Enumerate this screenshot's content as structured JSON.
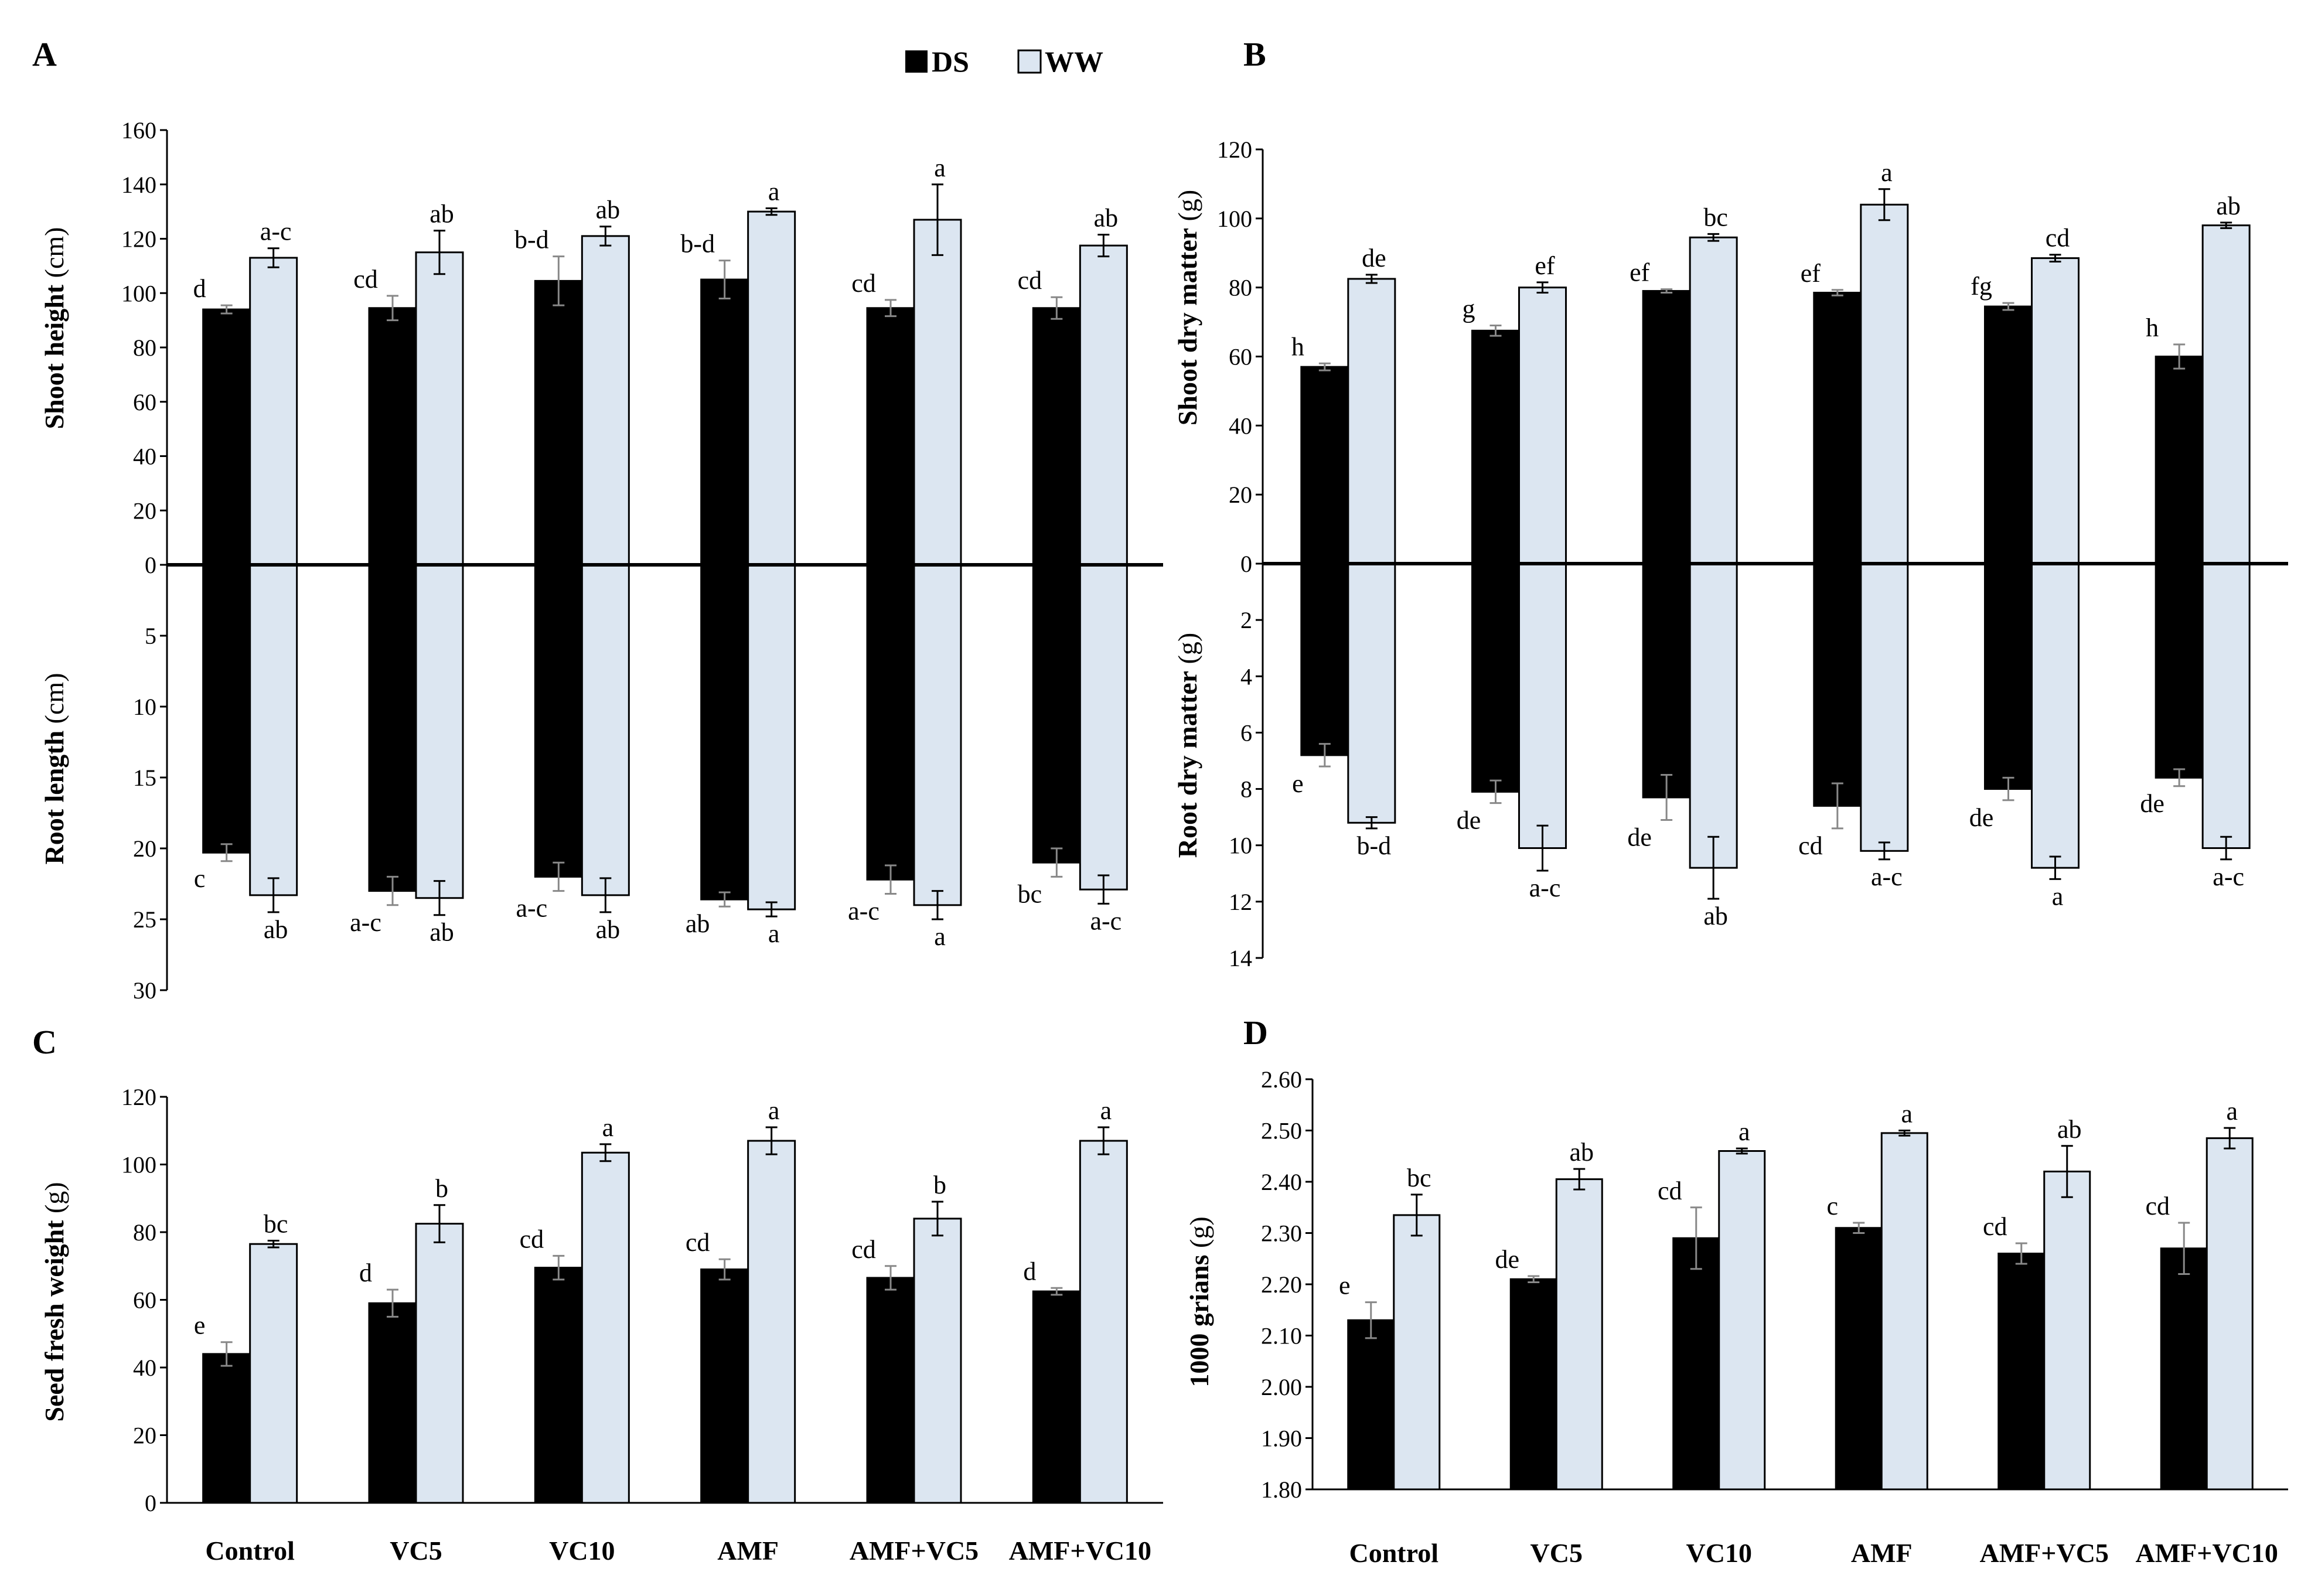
{
  "colors": {
    "DS": "#000000",
    "WW": "#dce6f1",
    "stroke": "#000000"
  },
  "legend": [
    {
      "key": "DS",
      "label": "DS"
    },
    {
      "key": "WW",
      "label": "WW"
    }
  ],
  "categories": [
    "Control",
    "VC5",
    "VC10",
    "AMF",
    "AMF+VC5",
    "AMF+VC10"
  ],
  "chart_data": [
    {
      "panel": "A",
      "type": "bar",
      "layout": "butterfly",
      "top": {
        "ylabel_main": "Shoot height",
        "ylabel_unit": " (cm)",
        "ylim": [
          0,
          160
        ],
        "ticks": [
          "160",
          "140",
          "120",
          "100",
          "80",
          "60",
          "40",
          "20",
          "0"
        ],
        "series": [
          {
            "name": "DS",
            "values": [
              94,
              94.5,
              104.5,
              105,
              94.5,
              94.5
            ],
            "errors": [
              1.5,
              4.5,
              9,
              7,
              3,
              4
            ],
            "letters": [
              "d",
              "cd",
              "b-d",
              "b-d",
              "cd",
              "cd"
            ]
          },
          {
            "name": "WW",
            "values": [
              113,
              115,
              121,
              130,
              127,
              117.5
            ],
            "errors": [
              3.5,
              8,
              3.5,
              1.2,
              13,
              4
            ],
            "letters": [
              "a-c",
              "ab",
              "ab",
              "a",
              "a",
              "ab"
            ]
          }
        ]
      },
      "bottom": {
        "ylabel_main": "Root length",
        "ylabel_unit": " (cm)",
        "ylim": [
          0,
          30
        ],
        "ticks": [
          "5",
          "10",
          "15",
          "20",
          "25",
          "30"
        ],
        "series": [
          {
            "name": "DS",
            "values": [
              20.3,
              23,
              22,
              23.6,
              22.2,
              21
            ],
            "errors": [
              0.6,
              1,
              1,
              0.5,
              1,
              1
            ],
            "letters": [
              "c",
              "a-c",
              "a-c",
              "ab",
              "a-c",
              "bc"
            ]
          },
          {
            "name": "WW",
            "values": [
              23.3,
              23.5,
              23.3,
              24.3,
              24,
              22.9
            ],
            "errors": [
              1.2,
              1.2,
              1.2,
              0.5,
              1,
              1
            ],
            "letters": [
              "ab",
              "ab",
              "ab",
              "a",
              "a",
              "a-c"
            ]
          }
        ]
      }
    },
    {
      "panel": "B",
      "type": "bar",
      "layout": "butterfly",
      "top": {
        "ylabel_main": "Shoot dry matter",
        "ylabel_unit": " (g)",
        "ylim": [
          0,
          120
        ],
        "ticks": [
          "120",
          "100",
          "80",
          "60",
          "40",
          "20",
          "0"
        ],
        "series": [
          {
            "name": "DS",
            "values": [
              57,
              67.5,
              79,
              78.5,
              74.5,
              60
            ],
            "errors": [
              1,
              1.5,
              0.5,
              0.8,
              1,
              3.5
            ],
            "letters": [
              "h",
              "g",
              "ef",
              "ef",
              "fg",
              "h"
            ]
          },
          {
            "name": "WW",
            "values": [
              82.5,
              80,
              94.5,
              104,
              88.5,
              98
            ],
            "errors": [
              1.2,
              1.5,
              1,
              4.5,
              1,
              0.8
            ],
            "letters": [
              "de",
              "ef",
              "bc",
              "a",
              "cd",
              "ab"
            ]
          }
        ]
      },
      "bottom": {
        "ylabel_main": "Root dry matter",
        "ylabel_unit": " (g)",
        "ylim": [
          0,
          14
        ],
        "ticks": [
          "2",
          "4",
          "6",
          "8",
          "10",
          "12",
          "14"
        ],
        "series": [
          {
            "name": "DS",
            "values": [
              6.8,
              8.1,
              8.3,
              8.6,
              8,
              7.6
            ],
            "errors": [
              0.4,
              0.4,
              0.8,
              0.8,
              0.4,
              0.3
            ],
            "letters": [
              "e",
              "de",
              "de",
              "cd",
              "de",
              "de"
            ]
          },
          {
            "name": "WW",
            "values": [
              9.2,
              10.1,
              10.8,
              10.2,
              10.8,
              10.1
            ],
            "errors": [
              0.2,
              0.8,
              1.1,
              0.3,
              0.4,
              0.4
            ],
            "letters": [
              "b-d",
              "a-c",
              "ab",
              "a-c",
              "a",
              "a-c"
            ]
          }
        ]
      }
    },
    {
      "panel": "C",
      "type": "bar",
      "ylabel_main": "Seed fresh weight",
      "ylabel_unit": " (g)",
      "ylim": [
        0,
        120
      ],
      "ticks": [
        "120",
        "100",
        "80",
        "60",
        "40",
        "20",
        "0"
      ],
      "series": [
        {
          "name": "DS",
          "values": [
            44,
            59,
            69.5,
            69,
            66.5,
            62.5
          ],
          "errors": [
            3.5,
            4,
            3.5,
            3,
            3.5,
            1
          ],
          "letters": [
            "e",
            "d",
            "cd",
            "cd",
            "cd",
            "d"
          ]
        },
        {
          "name": "WW",
          "values": [
            76.5,
            82.5,
            103.5,
            107,
            84,
            107
          ],
          "errors": [
            1,
            5.5,
            2.5,
            4,
            5,
            4
          ],
          "letters": [
            "bc",
            "b",
            "a",
            "a",
            "b",
            "a"
          ]
        }
      ]
    },
    {
      "panel": "D",
      "type": "bar",
      "ylabel_main": "1000 grians",
      "ylabel_unit": " (g)",
      "ylim": [
        1.8,
        2.6
      ],
      "ticks": [
        "2.60",
        "2.50",
        "2.40",
        "2.30",
        "2.20",
        "2.10",
        "2.00",
        "1.90",
        "1.80"
      ],
      "series": [
        {
          "name": "DS",
          "values": [
            2.13,
            2.21,
            2.29,
            2.31,
            2.26,
            2.27
          ],
          "errors": [
            0.035,
            0.006,
            0.06,
            0.01,
            0.02,
            0.05
          ],
          "letters": [
            "e",
            "de",
            "cd",
            "c",
            "cd",
            "cd"
          ]
        },
        {
          "name": "WW",
          "values": [
            2.335,
            2.405,
            2.46,
            2.495,
            2.42,
            2.485
          ],
          "errors": [
            0.04,
            0.02,
            0.005,
            0.005,
            0.05,
            0.02
          ],
          "letters": [
            "bc",
            "ab",
            "a",
            "a",
            "ab",
            "a"
          ]
        }
      ]
    }
  ]
}
